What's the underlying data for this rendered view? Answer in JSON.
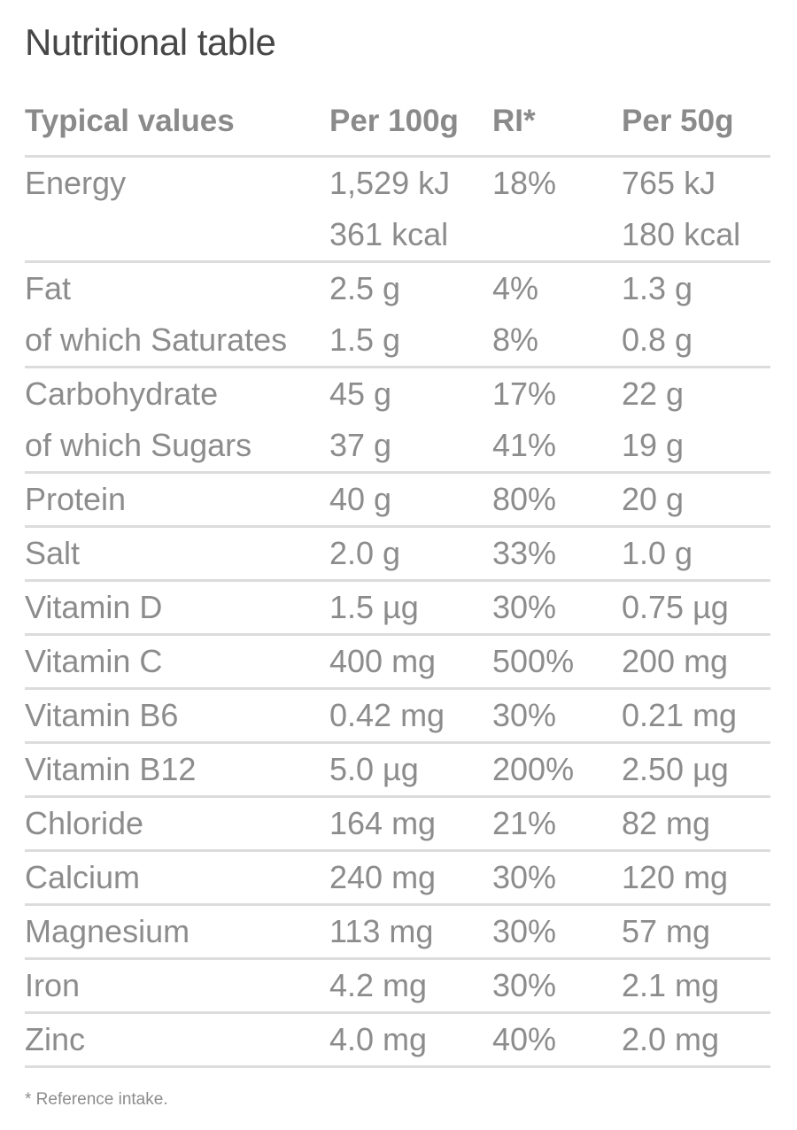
{
  "title": "Nutritional table",
  "headers": [
    "Typical values",
    "Per 100g",
    "RI*",
    "Per 50g"
  ],
  "groups": [
    {
      "names": [
        "Energy",
        ""
      ],
      "per100": [
        "1,529 kJ",
        "361 kcal"
      ],
      "ri": [
        "18%",
        ""
      ],
      "per50": [
        "765 kJ",
        "180 kcal"
      ]
    },
    {
      "names": [
        "Fat",
        "of which Saturates"
      ],
      "per100": [
        "2.5 g",
        "1.5 g"
      ],
      "ri": [
        "4%",
        "8%"
      ],
      "per50": [
        "1.3 g",
        "0.8 g"
      ]
    },
    {
      "names": [
        "Carbohydrate",
        "of which Sugars"
      ],
      "per100": [
        "45 g",
        "37 g"
      ],
      "ri": [
        "17%",
        "41%"
      ],
      "per50": [
        "22 g",
        "19 g"
      ]
    },
    {
      "names": [
        "Protein"
      ],
      "per100": [
        "40 g"
      ],
      "ri": [
        "80%"
      ],
      "per50": [
        "20 g"
      ]
    },
    {
      "names": [
        "Salt"
      ],
      "per100": [
        "2.0 g"
      ],
      "ri": [
        "33%"
      ],
      "per50": [
        "1.0 g"
      ]
    },
    {
      "names": [
        "Vitamin D"
      ],
      "per100": [
        "1.5 µg"
      ],
      "ri": [
        "30%"
      ],
      "per50": [
        "0.75 µg"
      ]
    },
    {
      "names": [
        "Vitamin C"
      ],
      "per100": [
        "400 mg"
      ],
      "ri": [
        "500%"
      ],
      "per50": [
        "200 mg"
      ]
    },
    {
      "names": [
        "Vitamin B6"
      ],
      "per100": [
        "0.42 mg"
      ],
      "ri": [
        "30%"
      ],
      "per50": [
        "0.21 mg"
      ]
    },
    {
      "names": [
        "Vitamin B12"
      ],
      "per100": [
        "5.0 µg"
      ],
      "ri": [
        "200%"
      ],
      "per50": [
        "2.50 µg"
      ]
    },
    {
      "names": [
        "Chloride"
      ],
      "per100": [
        "164 mg"
      ],
      "ri": [
        "21%"
      ],
      "per50": [
        "82 mg"
      ]
    },
    {
      "names": [
        "Calcium"
      ],
      "per100": [
        "240 mg"
      ],
      "ri": [
        "30%"
      ],
      "per50": [
        "120 mg"
      ]
    },
    {
      "names": [
        "Magnesium"
      ],
      "per100": [
        "113 mg"
      ],
      "ri": [
        "30%"
      ],
      "per50": [
        "57 mg"
      ]
    },
    {
      "names": [
        "Iron"
      ],
      "per100": [
        "4.2 mg"
      ],
      "ri": [
        "30%"
      ],
      "per50": [
        "2.1 mg"
      ]
    },
    {
      "names": [
        "Zinc"
      ],
      "per100": [
        "4.0 mg"
      ],
      "ri": [
        "40%"
      ],
      "per50": [
        "2.0 mg"
      ]
    }
  ],
  "footnote": "* Reference intake."
}
